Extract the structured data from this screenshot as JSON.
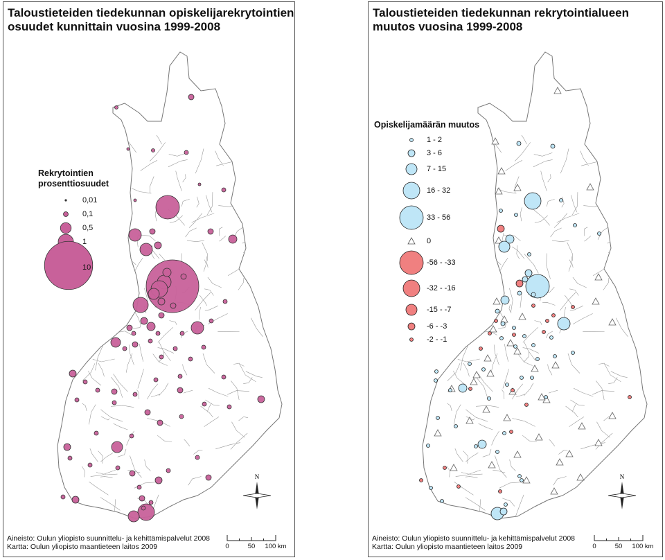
{
  "left_map": {
    "title": "Taloustieteiden tiedekunnan opiskelijarekrytointien\nosuudet kunnittain vuosina 1999-2008",
    "legend": {
      "title": "Rekrytointien\nprosenttiosuudet",
      "items": [
        {
          "label": "0,01",
          "value": 0.01
        },
        {
          "label": "0,1",
          "value": 0.1
        },
        {
          "label": "0,5",
          "value": 0.5
        },
        {
          "label": "1",
          "value": 1
        },
        {
          "label": "10",
          "value": 10
        }
      ]
    },
    "credits": [
      "Aineisto: Oulun yliopisto suunnittelu- ja kehittämispalvelut 2008",
      "Kartta: Oulun yliopisto maantieteen laitos 2009"
    ],
    "scale": [
      "0",
      "50",
      "100 km"
    ],
    "north_label": "N",
    "symbol_color": "#c8619a"
  },
  "right_map": {
    "title": "Taloustieteiden tiedekunnan rekrytointialueen\nmuutos vuosina 1999-2008",
    "legend": {
      "title": "Opiskelijamäärän muutos",
      "items": [
        {
          "label": "1 - 2",
          "class": "increase"
        },
        {
          "label": "3 - 6",
          "class": "increase"
        },
        {
          "label": "7 - 15",
          "class": "increase"
        },
        {
          "label": "16 - 32",
          "class": "increase"
        },
        {
          "label": "33 - 56",
          "class": "increase"
        },
        {
          "label": "0",
          "class": "zero"
        },
        {
          "label": "-56 - -33",
          "class": "decrease"
        },
        {
          "label": "-32 - -16",
          "class": "decrease"
        },
        {
          "label": "-15 - -7",
          "class": "decrease"
        },
        {
          "label": "-6 - -3",
          "class": "decrease"
        },
        {
          "label": "-2 - -1",
          "class": "decrease"
        }
      ]
    },
    "credits": [
      "Aineisto: Oulun yliopisto suunnittelu- ja kehittämispalvelut 2008",
      "Kartta: Oulun yliopisto maantieteen laitos 2009"
    ],
    "scale": [
      "0",
      "50",
      "100 km"
    ],
    "north_label": "N",
    "increase_color": "#bfe6f7",
    "decrease_color": "#f08080",
    "zero_color": "#ffffff"
  }
}
